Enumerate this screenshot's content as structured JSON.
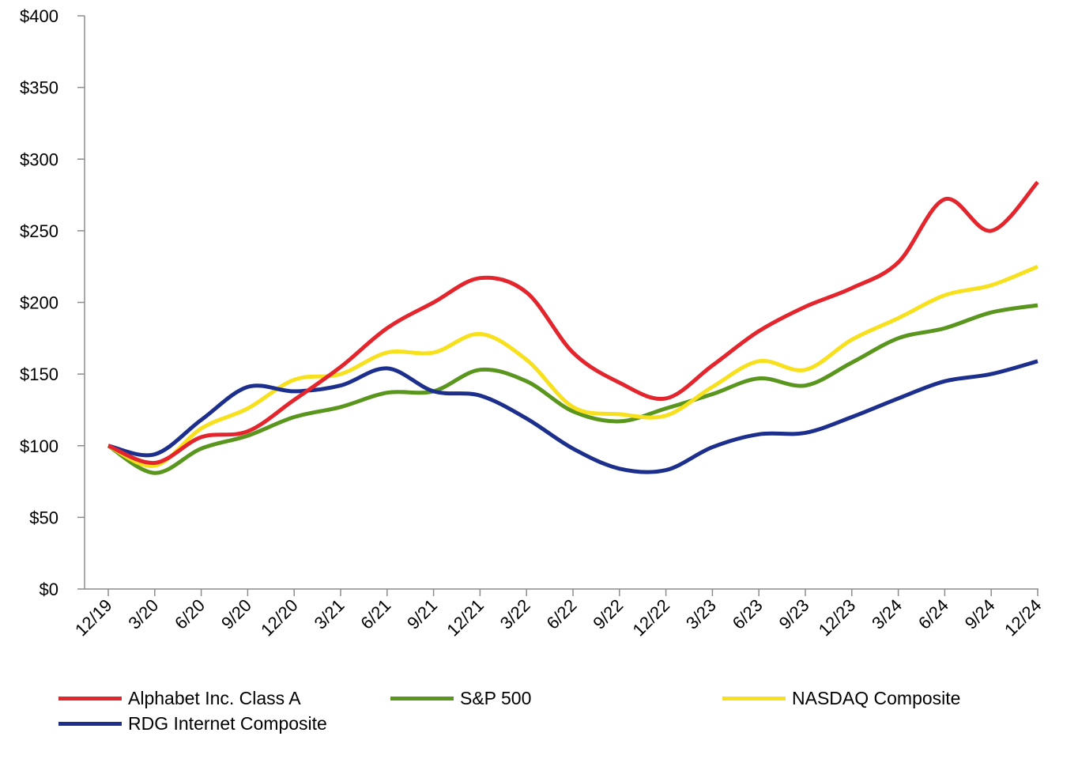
{
  "chart_data": {
    "type": "line",
    "title": "",
    "xlabel": "",
    "ylabel": "",
    "ylim": [
      0,
      400
    ],
    "y_ticks": [
      0,
      50,
      100,
      150,
      200,
      250,
      300,
      350,
      400
    ],
    "y_tick_labels": [
      "$0",
      "$50",
      "$100",
      "$150",
      "$200",
      "$250",
      "$300",
      "$350",
      "$400"
    ],
    "categories": [
      "12/19",
      "3/20",
      "6/20",
      "9/20",
      "12/20",
      "3/21",
      "6/21",
      "9/21",
      "12/21",
      "3/22",
      "6/22",
      "9/22",
      "12/22",
      "3/23",
      "6/23",
      "9/23",
      "12/23",
      "3/24",
      "6/24",
      "9/24",
      "12/24"
    ],
    "grid": false,
    "legend_position": "bottom",
    "series": [
      {
        "name": "Alphabet Inc. Class A",
        "color": "#e3262d",
        "values": [
          100,
          88,
          106,
          110,
          132,
          155,
          182,
          200,
          217,
          207,
          165,
          144,
          133,
          156,
          180,
          197,
          210,
          228,
          272,
          250,
          284
        ]
      },
      {
        "name": "S&P 500",
        "color": "#5a961e",
        "values": [
          100,
          81,
          98,
          107,
          120,
          127,
          137,
          138,
          153,
          145,
          124,
          117,
          126,
          136,
          147,
          142,
          158,
          175,
          182,
          193,
          198
        ]
      },
      {
        "name": "NASDAQ Composite",
        "color": "#f7e01d",
        "values": [
          100,
          86,
          112,
          126,
          146,
          150,
          165,
          165,
          178,
          160,
          127,
          122,
          121,
          141,
          159,
          153,
          174,
          189,
          205,
          212,
          225
        ]
      },
      {
        "name": "RDG Internet Composite",
        "color": "#1c2f8c",
        "values": [
          100,
          94,
          118,
          141,
          138,
          142,
          154,
          138,
          135,
          119,
          98,
          84,
          83,
          99,
          108,
          109,
          120,
          133,
          145,
          150,
          159
        ]
      }
    ]
  }
}
